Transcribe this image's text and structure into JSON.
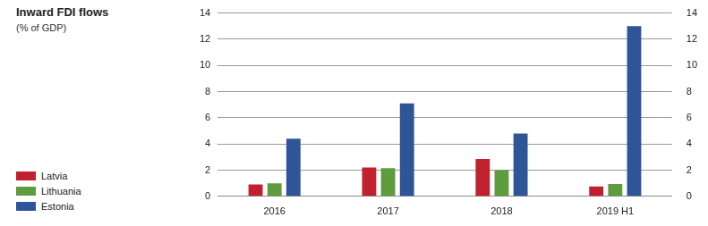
{
  "chart_data": {
    "type": "bar",
    "title": "Inward FDI flows",
    "subtitle": "(% of GDP)",
    "categories": [
      "2016",
      "2017",
      "2018",
      "2019 H1"
    ],
    "series": [
      {
        "name": "Latvia",
        "color": "#c1212f",
        "values": [
          0.9,
          2.2,
          2.85,
          0.75
        ]
      },
      {
        "name": "Lithuania",
        "color": "#5e9c3e",
        "values": [
          1.0,
          2.15,
          2.0,
          0.95
        ]
      },
      {
        "name": "Estonia",
        "color": "#2e5597",
        "values": [
          4.4,
          7.1,
          4.8,
          13.0
        ]
      }
    ],
    "ylim": [
      0,
      14
    ],
    "yticks": [
      0,
      2,
      4,
      6,
      8,
      10,
      12,
      14
    ],
    "y2lim": [
      0,
      14
    ],
    "y2ticks": [
      0,
      2,
      4,
      6,
      8,
      10,
      12,
      14
    ],
    "grid": true,
    "legend": "lower left"
  }
}
